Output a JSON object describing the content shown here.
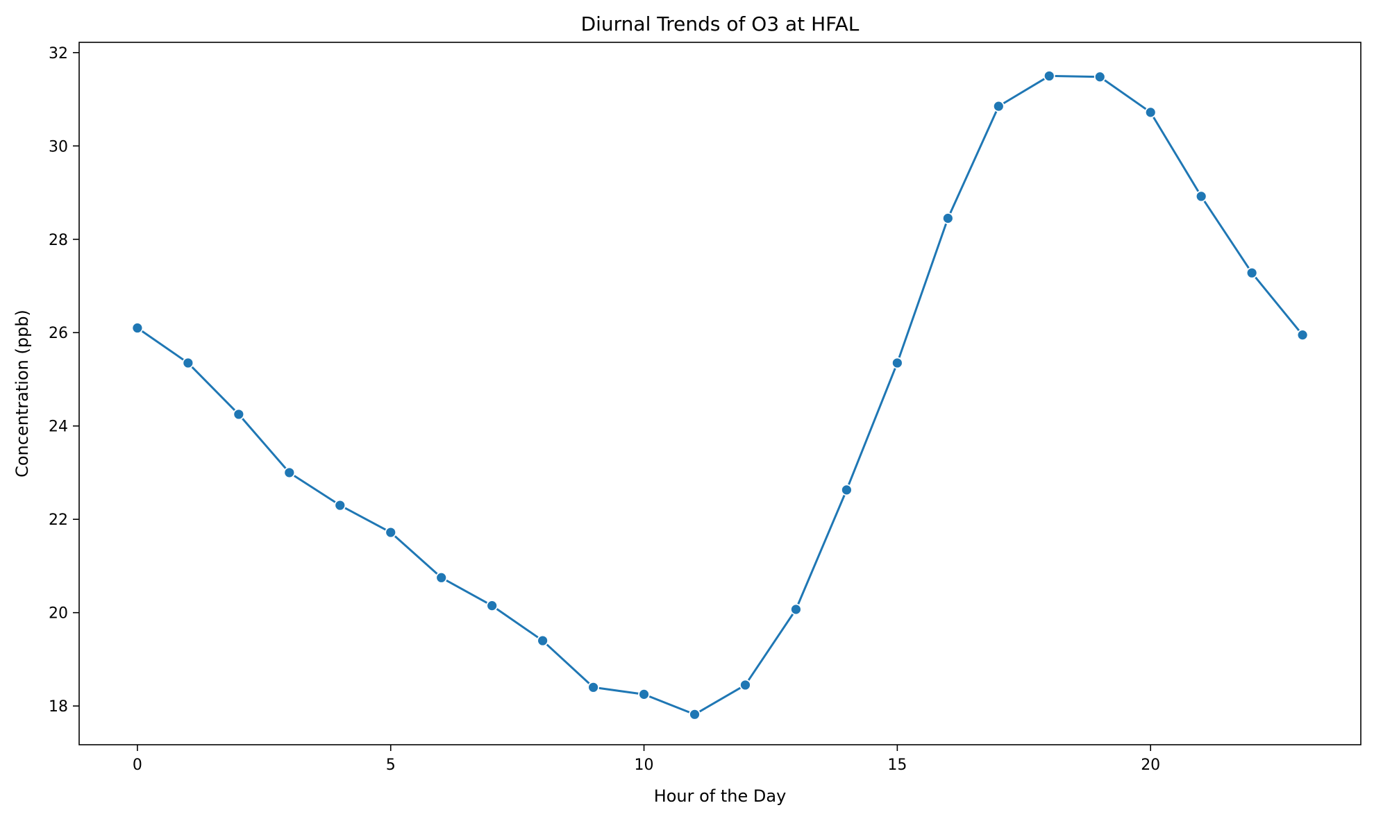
{
  "chart_data": {
    "type": "line",
    "title": "Diurnal Trends of O3 at HFAL",
    "xlabel": "Hour of the Day",
    "ylabel": "Concentration (ppb)",
    "xlim": [
      -1.15,
      24.15
    ],
    "ylim": [
      17.17,
      32.22
    ],
    "xticks": [
      0,
      5,
      10,
      15,
      20
    ],
    "yticks": [
      18,
      20,
      22,
      24,
      26,
      28,
      30,
      32
    ],
    "grid": false,
    "legend": "none",
    "series": [
      {
        "color": "#1f77b4",
        "marker": "circle",
        "x": [
          0,
          1,
          2,
          3,
          4,
          5,
          6,
          7,
          8,
          9,
          10,
          11,
          12,
          13,
          14,
          15,
          16,
          17,
          18,
          19,
          20,
          21,
          22,
          23
        ],
        "y": [
          26.1,
          25.35,
          24.25,
          23.0,
          22.3,
          21.72,
          20.75,
          20.15,
          19.4,
          18.4,
          18.25,
          17.82,
          18.45,
          20.07,
          22.63,
          25.35,
          28.45,
          30.85,
          31.5,
          31.48,
          30.72,
          28.92,
          27.28,
          25.95
        ]
      }
    ]
  }
}
